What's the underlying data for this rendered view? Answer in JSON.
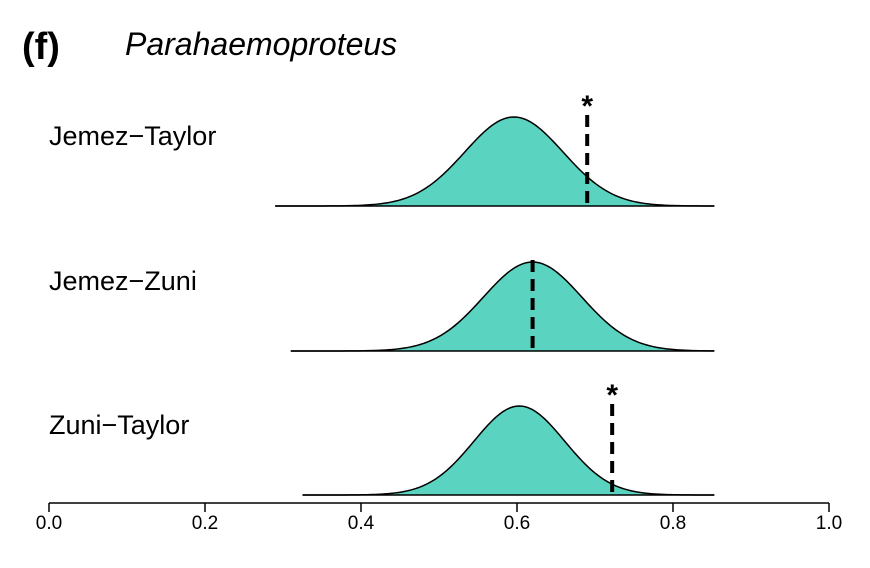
{
  "chart_data": {
    "type": "density",
    "panel_label": "(f)",
    "title": "Parahaemoproteus",
    "xlim": [
      0.0,
      1.0
    ],
    "x_ticks": [
      "0.0",
      "0.2",
      "0.4",
      "0.6",
      "0.8",
      "1.0"
    ],
    "fill_color": "#5BD3C1",
    "series": [
      {
        "name": "Jemez−Taylor",
        "dist_range": [
          0.29,
          0.853
        ],
        "mode": 0.596,
        "sd": 0.063,
        "observed": 0.69,
        "significant": true,
        "marker": "*"
      },
      {
        "name": "Jemez−Zuni",
        "dist_range": [
          0.31,
          0.853
        ],
        "mode": 0.62,
        "sd": 0.063,
        "observed": 0.62,
        "significant": false,
        "marker": ""
      },
      {
        "name": "Zuni−Taylor",
        "dist_range": [
          0.325,
          0.853
        ],
        "mode": 0.603,
        "sd": 0.058,
        "observed": 0.722,
        "significant": true,
        "marker": "*"
      }
    ]
  }
}
